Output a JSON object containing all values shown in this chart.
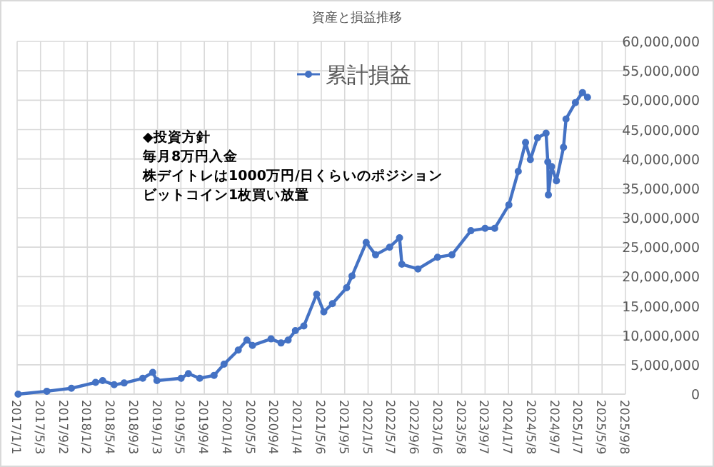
{
  "chart_data": {
    "type": "line",
    "title": "資産と損益推移",
    "annotations": [
      "◆投資方針",
      "毎月8万円入金",
      "株デイトレは1000万円/日くらいのポジション",
      "ビットコイン1枚買い放置"
    ],
    "legend": "top",
    "grid": true,
    "marker": "circle",
    "line_style": "solid",
    "xlim": [
      "2017-01-01",
      "2025-09-08"
    ],
    "xticks": [
      {
        "value": "2017-01-01",
        "label": "2017/1/1"
      },
      {
        "value": "2017-05-03",
        "label": "2017/5/3"
      },
      {
        "value": "2017-09-02",
        "label": "2017/9/2"
      },
      {
        "value": "2018-01-02",
        "label": "2018/1/2"
      },
      {
        "value": "2018-05-04",
        "label": "2018/5/4"
      },
      {
        "value": "2018-09-03",
        "label": "2018/9/3"
      },
      {
        "value": "2019-01-03",
        "label": "2019/1/3"
      },
      {
        "value": "2019-05-05",
        "label": "2019/5/5"
      },
      {
        "value": "2019-09-04",
        "label": "2019/9/4"
      },
      {
        "value": "2020-01-04",
        "label": "2020/1/4"
      },
      {
        "value": "2020-05-05",
        "label": "2020/5/5"
      },
      {
        "value": "2020-09-04",
        "label": "2020/9/4"
      },
      {
        "value": "2021-01-04",
        "label": "2021/1/4"
      },
      {
        "value": "2021-05-06",
        "label": "2021/5/6"
      },
      {
        "value": "2021-09-05",
        "label": "2021/9/5"
      },
      {
        "value": "2022-01-05",
        "label": "2022/1/5"
      },
      {
        "value": "2022-05-07",
        "label": "2022/5/7"
      },
      {
        "value": "2022-09-06",
        "label": "2022/9/6"
      },
      {
        "value": "2023-01-06",
        "label": "2023/1/6"
      },
      {
        "value": "2023-05-08",
        "label": "2023/5/8"
      },
      {
        "value": "2023-09-07",
        "label": "2023/9/7"
      },
      {
        "value": "2024-01-07",
        "label": "2024/1/7"
      },
      {
        "value": "2024-05-08",
        "label": "2024/5/8"
      },
      {
        "value": "2024-09-07",
        "label": "2024/9/7"
      },
      {
        "value": "2025-01-07",
        "label": "2025/1/7"
      },
      {
        "value": "2025-05-09",
        "label": "2025/5/9"
      },
      {
        "value": "2025-09-08",
        "label": "2025/9/8"
      }
    ],
    "ylim": [
      0,
      60000000
    ],
    "yticks": [
      {
        "value": 0,
        "label": "0"
      },
      {
        "value": 5000000,
        "label": "5,000,000"
      },
      {
        "value": 10000000,
        "label": "10,000,000"
      },
      {
        "value": 15000000,
        "label": "15,000,000"
      },
      {
        "value": 20000000,
        "label": "20,000,000"
      },
      {
        "value": 25000000,
        "label": "25,000,000"
      },
      {
        "value": 30000000,
        "label": "30,000,000"
      },
      {
        "value": 35000000,
        "label": "35,000,000"
      },
      {
        "value": 40000000,
        "label": "40,000,000"
      },
      {
        "value": 45000000,
        "label": "45,000,000"
      },
      {
        "value": 50000000,
        "label": "50,000,000"
      },
      {
        "value": 55000000,
        "label": "55,000,000"
      },
      {
        "value": 60000000,
        "label": "60,000,000"
      }
    ],
    "x": [
      "2017-01-06",
      "2017-06-05",
      "2017-10-11",
      "2018-02-14",
      "2018-03-23",
      "2018-05-22",
      "2018-07-13",
      "2018-10-18",
      "2018-12-09",
      "2018-12-31",
      "2019-05-06",
      "2019-06-13",
      "2019-08-11",
      "2019-10-25",
      "2019-12-16",
      "2020-02-28",
      "2020-04-13",
      "2020-05-12",
      "2020-08-17",
      "2020-10-08",
      "2020-11-14",
      "2020-12-22",
      "2021-02-04",
      "2021-04-12",
      "2021-05-19",
      "2021-07-03",
      "2021-09-15",
      "2021-10-13",
      "2021-12-26",
      "2022-02-13",
      "2022-04-27",
      "2022-06-18",
      "2022-06-30",
      "2022-09-22",
      "2023-01-02",
      "2023-03-18",
      "2023-06-25",
      "2023-09-07",
      "2023-10-27",
      "2024-01-09",
      "2024-02-27",
      "2024-04-05",
      "2024-04-30",
      "2024-06-06",
      "2024-07-21",
      "2024-07-30",
      "2024-08-02",
      "2024-08-19",
      "2024-09-13",
      "2024-10-20",
      "2024-11-02",
      "2024-12-21",
      "2025-01-27",
      "2025-02-22"
    ],
    "series": [
      {
        "name": "累計損益",
        "color": "#4472c4",
        "values": [
          0,
          500000,
          1000000,
          2000000,
          2300000,
          1600000,
          1900000,
          2700000,
          3700000,
          2300000,
          2700000,
          3500000,
          2700000,
          3200000,
          5100000,
          7500000,
          9200000,
          8300000,
          9400000,
          8700000,
          9200000,
          10800000,
          11600000,
          17000000,
          14000000,
          15400000,
          18100000,
          20100000,
          25800000,
          23700000,
          25000000,
          26600000,
          22100000,
          21300000,
          23300000,
          23700000,
          27800000,
          28200000,
          28200000,
          32200000,
          37900000,
          42800000,
          39900000,
          43600000,
          44400000,
          39500000,
          33900000,
          38700000,
          36300000,
          42000000,
          46800000,
          49600000,
          51300000,
          50500000
        ]
      }
    ]
  }
}
